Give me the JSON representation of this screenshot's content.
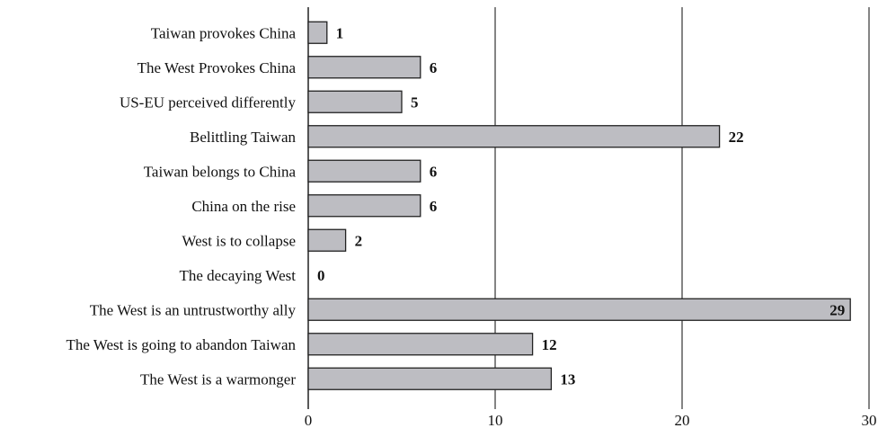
{
  "chart_data": {
    "type": "bar",
    "orientation": "horizontal",
    "categories": [
      "Taiwan provokes China",
      "The West Provokes China",
      "US-EU perceived differently",
      "Belittling Taiwan",
      "Taiwan belongs to China",
      "China on the rise",
      "West is to collapse",
      "The decaying West",
      "The West is an untrustworthy ally",
      "The West is going to abandon Taiwan",
      "The West is a warmonger"
    ],
    "values": [
      1,
      6,
      5,
      22,
      6,
      6,
      2,
      0,
      29,
      12,
      13
    ],
    "xlim": [
      0,
      30
    ],
    "xticks": [
      "0",
      "10",
      "20",
      "30"
    ],
    "grid": true,
    "legend": false,
    "title": "",
    "xlabel": "",
    "ylabel": "",
    "colors": {
      "bar_fill": "#bdbdc2",
      "bar_stroke": "#222222",
      "grid": "#333333"
    }
  }
}
